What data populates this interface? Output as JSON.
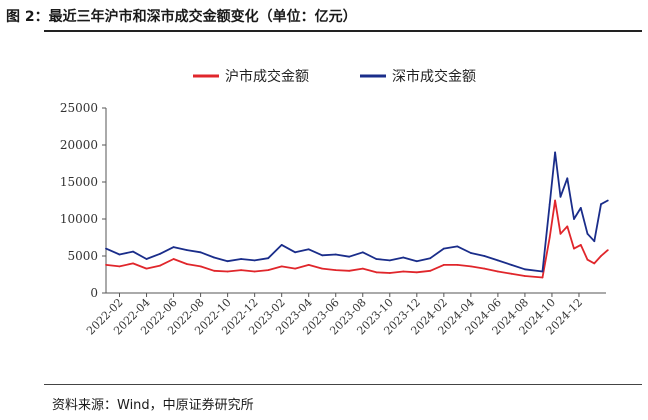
{
  "header": {
    "title": "图 2：最近三年沪市和深市成交金额变化（单位：亿元）"
  },
  "footer": {
    "source": "资料来源：Wind，中原证券研究所"
  },
  "colors": {
    "sh": "#e0262b",
    "sz": "#1a2d8a",
    "axis": "#555555",
    "grid": "#cccccc"
  },
  "chart_data": {
    "type": "line",
    "title": "",
    "xlabel": "",
    "ylabel": "",
    "ylim": [
      0,
      25000
    ],
    "yticks": [
      0,
      5000,
      10000,
      15000,
      20000,
      25000
    ],
    "xlim": [
      "2022-01",
      "2025-02"
    ],
    "xticks": [
      "2022-02",
      "2022-04",
      "2022-06",
      "2022-08",
      "2022-10",
      "2022-12",
      "2023-02",
      "2023-04",
      "2023-06",
      "2023-08",
      "2023-10",
      "2023-12",
      "2024-02",
      "2024-04",
      "2024-06",
      "2024-08",
      "2024-10",
      "2024-12"
    ],
    "grid": false,
    "legend": "top-center",
    "series": [
      {
        "name": "沪市成交金额",
        "color": "#e0262b",
        "x": [
          "2022-01",
          "2022-02",
          "2022-03",
          "2022-04",
          "2022-05",
          "2022-06",
          "2022-07",
          "2022-08",
          "2022-09",
          "2022-10",
          "2022-11",
          "2022-12",
          "2023-01",
          "2023-02",
          "2023-03",
          "2023-04",
          "2023-05",
          "2023-06",
          "2023-07",
          "2023-08",
          "2023-09",
          "2023-10",
          "2023-11",
          "2023-12",
          "2024-01",
          "2024-02",
          "2024-03",
          "2024-04",
          "2024-05",
          "2024-06",
          "2024-07",
          "2024-08",
          "2024-09-10",
          "2024-09-26",
          "2024-10-08",
          "2024-10-20",
          "2024-11-05",
          "2024-11-20",
          "2024-12-05",
          "2024-12-20",
          "2025-01-05",
          "2025-01-20",
          "2025-02-05"
        ],
        "values": [
          3800,
          3600,
          4000,
          3300,
          3700,
          4600,
          3900,
          3600,
          3000,
          2900,
          3100,
          2900,
          3100,
          3600,
          3300,
          3800,
          3300,
          3100,
          3000,
          3300,
          2800,
          2700,
          2900,
          2800,
          3000,
          3800,
          3800,
          3600,
          3300,
          2900,
          2600,
          2300,
          2100,
          7500,
          12500,
          8000,
          9000,
          6000,
          6500,
          4500,
          4000,
          5000,
          5800
        ]
      },
      {
        "name": "深市成交金额",
        "color": "#1a2d8a",
        "x": [
          "2022-01",
          "2022-02",
          "2022-03",
          "2022-04",
          "2022-05",
          "2022-06",
          "2022-07",
          "2022-08",
          "2022-09",
          "2022-10",
          "2022-11",
          "2022-12",
          "2023-01",
          "2023-02",
          "2023-03",
          "2023-04",
          "2023-05",
          "2023-06",
          "2023-07",
          "2023-08",
          "2023-09",
          "2023-10",
          "2023-11",
          "2023-12",
          "2024-01",
          "2024-02",
          "2024-03",
          "2024-04",
          "2024-05",
          "2024-06",
          "2024-07",
          "2024-08",
          "2024-09-10",
          "2024-09-26",
          "2024-10-08",
          "2024-10-20",
          "2024-11-05",
          "2024-11-20",
          "2024-12-05",
          "2024-12-20",
          "2025-01-05",
          "2025-01-20",
          "2025-02-05"
        ],
        "values": [
          6000,
          5200,
          5600,
          4600,
          5300,
          6200,
          5800,
          5500,
          4800,
          4300,
          4600,
          4400,
          4700,
          6500,
          5500,
          5900,
          5100,
          5200,
          4900,
          5500,
          4600,
          4400,
          4800,
          4300,
          4700,
          6000,
          6300,
          5400,
          5000,
          4400,
          3800,
          3200,
          2900,
          12000,
          19000,
          13000,
          15500,
          10000,
          11500,
          8000,
          7000,
          12000,
          12500
        ]
      }
    ]
  }
}
